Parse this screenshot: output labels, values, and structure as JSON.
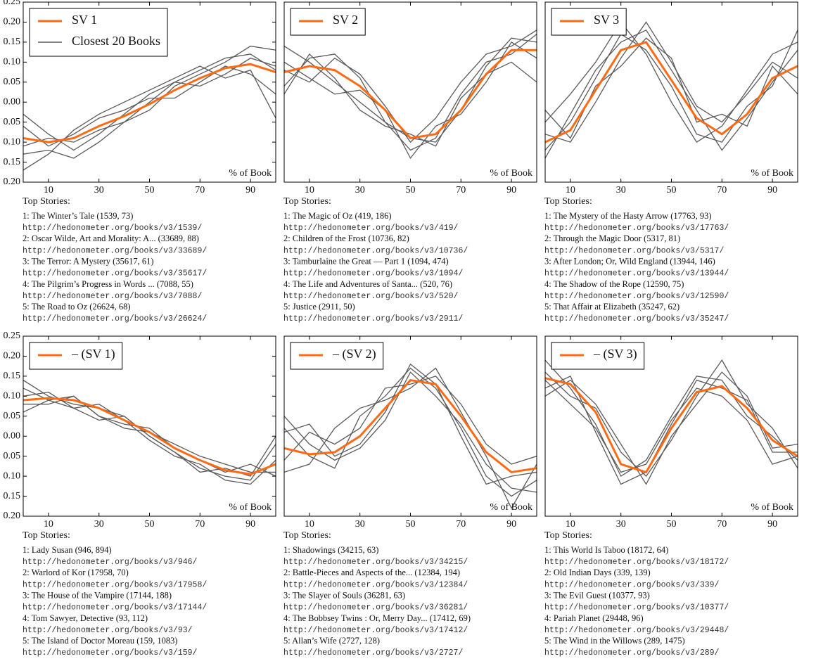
{
  "chart_data": [
    {
      "type": "line",
      "x": [
        0,
        10,
        20,
        30,
        40,
        50,
        60,
        70,
        80,
        90,
        100
      ],
      "xlim": [
        0,
        100
      ],
      "xticks": [
        10,
        30,
        50,
        70,
        90
      ],
      "ylim": [
        -0.2,
        0.25
      ],
      "yticks": [
        {
          "value": -0.2,
          "label": "0.20"
        },
        {
          "value": -0.15,
          "label": "0.15"
        },
        {
          "value": -0.1,
          "label": "0.10"
        },
        {
          "value": -0.05,
          "label": "0.05"
        },
        {
          "value": 0,
          "label": "0.00"
        },
        {
          "value": 0.05,
          "label": "0.05"
        },
        {
          "value": 0.1,
          "label": "0.10"
        },
        {
          "value": 0.15,
          "label": "0.15"
        },
        {
          "value": 0.2,
          "label": "0.20"
        },
        {
          "value": 0.25,
          "label": "0.25"
        }
      ],
      "annotation": "% of Book",
      "legend": "upper left",
      "series": [
        {
          "name": "SV 1",
          "color": "#ff6a13",
          "values": [
            -0.09,
            -0.1,
            -0.09,
            -0.06,
            -0.035,
            -0.005,
            0.03,
            0.06,
            0.085,
            0.095,
            0.075
          ]
        },
        {
          "name": "Closest 20 Books",
          "color": "#5a5a5a",
          "lines": [
            [
              -0.03,
              -0.08,
              -0.12,
              -0.08,
              -0.03,
              0.02,
              0.05,
              0.08,
              0.11,
              0.12,
              0.08
            ],
            [
              -0.13,
              -0.12,
              -0.14,
              -0.1,
              -0.05,
              -0.02,
              0.04,
              0.07,
              0.1,
              0.14,
              0.13
            ],
            [
              -0.06,
              -0.11,
              -0.08,
              -0.04,
              -0.02,
              0.01,
              0.01,
              0.05,
              0.09,
              0.07,
              0.02
            ],
            [
              -0.11,
              -0.09,
              -0.1,
              -0.07,
              -0.05,
              0,
              0.05,
              0.04,
              0.07,
              0.11,
              0.09
            ],
            [
              -0.17,
              -0.13,
              -0.07,
              -0.03,
              0,
              0.03,
              0.06,
              0.09,
              0.06,
              0.08,
              -0.04
            ]
          ]
        }
      ],
      "top_stories": {
        "heading": "Top Stories:",
        "items": [
          {
            "title": "1: The Winter’s Tale (1539, 73)",
            "url": "http://hedonometer.org/books/v3/1539/"
          },
          {
            "title": "2: Oscar Wilde, Art and Morality: A... (33689, 88)",
            "url": "http://hedonometer.org/books/v3/33689/"
          },
          {
            "title": "3: The Terror: A Mystery (35617, 61)",
            "url": "http://hedonometer.org/books/v3/35617/"
          },
          {
            "title": "4: The Pilgrim’s Progress in Words ... (7088, 55)",
            "url": "http://hedonometer.org/books/v3/7088/"
          },
          {
            "title": "5: The Road to Oz (26624, 68)",
            "url": "http://hedonometer.org/books/v3/26624/"
          }
        ]
      }
    },
    {
      "type": "line",
      "x": [
        0,
        10,
        20,
        30,
        40,
        50,
        60,
        70,
        80,
        90,
        100
      ],
      "xlim": [
        0,
        100
      ],
      "xticks": [
        10,
        30,
        50,
        70,
        90
      ],
      "ylim": [
        -0.2,
        0.25
      ],
      "annotation": "% of Book",
      "legend": "upper left",
      "series": [
        {
          "name": "SV 2",
          "color": "#ff6a13",
          "values": [
            0.075,
            0.09,
            0.08,
            0.04,
            -0.02,
            -0.09,
            -0.08,
            -0.02,
            0.07,
            0.13,
            0.13
          ]
        },
        {
          "color": "#5a5a5a",
          "lines": [
            [
              0.14,
              0.1,
              0.05,
              0,
              -0.05,
              -0.09,
              -0.1,
              -0.02,
              0.09,
              0.16,
              0.15
            ],
            [
              0.04,
              0.11,
              0.12,
              0.06,
              -0.05,
              -0.12,
              -0.09,
              0.02,
              0.1,
              0.12,
              0.17
            ],
            [
              0.1,
              0.06,
              0.02,
              0.03,
              -0.02,
              -0.14,
              -0.06,
              -0.03,
              0.05,
              0.15,
              0.11
            ],
            [
              0.02,
              0.12,
              0.06,
              -0.02,
              -0.06,
              -0.08,
              -0.11,
              0.01,
              0.07,
              0.1,
              0.05
            ],
            [
              0.08,
              0.05,
              0.11,
              0.07,
              -0.01,
              -0.1,
              -0.04,
              0.05,
              0.12,
              0.14,
              0.18
            ]
          ]
        }
      ],
      "top_stories": {
        "heading": "Top Stories:",
        "items": [
          {
            "title": "1: The Magic of Oz (419, 186)",
            "url": "http://hedonometer.org/books/v3/419/"
          },
          {
            "title": "2: Children of the Frost (10736, 82)",
            "url": "http://hedonometer.org/books/v3/10736/"
          },
          {
            "title": "3: Tamburlaine the Great — Part 1 (1094, 474)",
            "url": "http://hedonometer.org/books/v3/1094/"
          },
          {
            "title": "4: The Life and Adventures of Santa... (520, 76)",
            "url": "http://hedonometer.org/books/v3/520/"
          },
          {
            "title": "5: Justice (2911, 50)",
            "url": "http://hedonometer.org/books/v3/2911/"
          }
        ]
      }
    },
    {
      "type": "line",
      "x": [
        0,
        10,
        20,
        30,
        40,
        50,
        60,
        70,
        80,
        90,
        100
      ],
      "xlim": [
        0,
        100
      ],
      "xticks": [
        10,
        30,
        50,
        70,
        90
      ],
      "ylim": [
        -0.2,
        0.25
      ],
      "annotation": "% of Book",
      "legend": "upper left",
      "series": [
        {
          "name": "SV 3",
          "color": "#ff6a13",
          "values": [
            -0.1,
            -0.07,
            0.03,
            0.13,
            0.15,
            0.055,
            -0.04,
            -0.08,
            -0.03,
            0.06,
            0.09
          ]
        },
        {
          "color": "#5a5a5a",
          "lines": [
            [
              -0.05,
              0.02,
              0.1,
              0.2,
              0.12,
              0,
              -0.1,
              -0.06,
              0.03,
              0.12,
              0.15
            ],
            [
              -0.14,
              -0.03,
              0.08,
              0.15,
              0.18,
              0.08,
              -0.02,
              -0.12,
              -0.04,
              0.05,
              0.13
            ],
            [
              -0.08,
              -0.1,
              0,
              0.11,
              0.2,
              0.1,
              -0.01,
              -0.05,
              0.02,
              0.1,
              0.06
            ],
            [
              -0.12,
              -0.05,
              0.06,
              0.17,
              0.13,
              0.04,
              -0.08,
              -0.1,
              -0.01,
              0.04,
              0.18
            ],
            [
              -0.02,
              -0.09,
              0.04,
              0.09,
              0.16,
              0.11,
              -0.05,
              -0.03,
              -0.06,
              0.09,
              0.02
            ]
          ]
        }
      ],
      "top_stories": {
        "heading": "Top Stories:",
        "items": [
          {
            "title": "1: The Mystery of the Hasty Arrow (17763, 93)",
            "url": "http://hedonometer.org/books/v3/17763/"
          },
          {
            "title": "2: Through the Magic Door (5317, 81)",
            "url": "http://hedonometer.org/books/v3/5317/"
          },
          {
            "title": "3: After London; Or, Wild England (13944, 146)",
            "url": "http://hedonometer.org/books/v3/13944/"
          },
          {
            "title": "4: The Shadow of the Rope (12590, 75)",
            "url": "http://hedonometer.org/books/v3/12590/"
          },
          {
            "title": "5: That Affair at Elizabeth (35247, 62)",
            "url": "http://hedonometer.org/books/v3/35247/"
          }
        ]
      }
    },
    {
      "type": "line",
      "x": [
        0,
        10,
        20,
        30,
        40,
        50,
        60,
        70,
        80,
        90,
        100
      ],
      "xlim": [
        0,
        100
      ],
      "xticks": [
        10,
        30,
        50,
        70,
        90
      ],
      "ylim": [
        -0.2,
        0.25
      ],
      "yticks": [
        {
          "value": -0.2,
          "label": "0.20"
        },
        {
          "value": -0.15,
          "label": "0.15"
        },
        {
          "value": -0.1,
          "label": "0.10"
        },
        {
          "value": -0.05,
          "label": "0.05"
        },
        {
          "value": 0,
          "label": "0.00"
        },
        {
          "value": 0.05,
          "label": "0.05"
        },
        {
          "value": 0.1,
          "label": "0.10"
        },
        {
          "value": 0.15,
          "label": "0.15"
        },
        {
          "value": 0.2,
          "label": "0.20"
        },
        {
          "value": 0.25,
          "label": "0.25"
        }
      ],
      "annotation": "% of Book",
      "legend": "upper left",
      "series": [
        {
          "name": "– (SV 1)",
          "color": "#ff6a13",
          "values": [
            0.09,
            0.095,
            0.09,
            0.07,
            0.04,
            0.01,
            -0.03,
            -0.06,
            -0.085,
            -0.095,
            -0.07
          ]
        },
        {
          "color": "#5a5a5a",
          "lines": [
            [
              0.14,
              0.1,
              0.08,
              0.07,
              0.05,
              0,
              -0.04,
              -0.08,
              -0.1,
              -0.11,
              -0.02
            ],
            [
              0.06,
              0.09,
              0.1,
              0.05,
              0.02,
              0.01,
              -0.02,
              -0.05,
              -0.07,
              -0.09,
              -0.09
            ],
            [
              0.1,
              0.11,
              0.07,
              0.08,
              0.04,
              -0.01,
              -0.05,
              -0.07,
              -0.11,
              -0.12,
              -0.06
            ],
            [
              0.08,
              0.08,
              0.1,
              0.05,
              0.03,
              0.02,
              -0.03,
              -0.06,
              -0.09,
              -0.07,
              -0.1
            ],
            [
              0.12,
              0.09,
              0.07,
              0.04,
              0.05,
              0,
              -0.04,
              -0.09,
              -0.08,
              -0.1,
              0
            ]
          ]
        }
      ],
      "top_stories": {
        "heading": "Top Stories:",
        "items": [
          {
            "title": "1: Lady Susan (946, 894)",
            "url": "http://hedonometer.org/books/v3/946/"
          },
          {
            "title": "2: Warlord of Kor (17958, 70)",
            "url": "http://hedonometer.org/books/v3/17958/"
          },
          {
            "title": "3: The House of the Vampire (17144, 188)",
            "url": "http://hedonometer.org/books/v3/17144/"
          },
          {
            "title": "4: Tom Sawyer, Detective (93, 112)",
            "url": "http://hedonometer.org/books/v3/93/"
          },
          {
            "title": "5: The Island of Doctor Moreau (159, 1083)",
            "url": "http://hedonometer.org/books/v3/159/"
          }
        ]
      }
    },
    {
      "type": "line",
      "x": [
        0,
        10,
        20,
        30,
        40,
        50,
        60,
        70,
        80,
        90,
        100
      ],
      "xlim": [
        0,
        100
      ],
      "xticks": [
        10,
        30,
        50,
        70,
        90
      ],
      "ylim": [
        -0.2,
        0.25
      ],
      "annotation": "% of Book",
      "legend": "upper left",
      "series": [
        {
          "name": "– (SV 2)",
          "color": "#ff6a13",
          "values": [
            -0.03,
            -0.045,
            -0.04,
            0,
            0.07,
            0.14,
            0.13,
            0.05,
            -0.04,
            -0.09,
            -0.08
          ]
        },
        {
          "color": "#5a5a5a",
          "lines": [
            [
              0.02,
              -0.05,
              -0.08,
              0.05,
              0.1,
              0.17,
              0.12,
              0.02,
              -0.1,
              -0.15,
              -0.11
            ],
            [
              -0.06,
              0.01,
              -0.02,
              0.02,
              0.12,
              0.13,
              0.15,
              0.08,
              -0.02,
              -0.07,
              -0.05
            ],
            [
              0.05,
              -0.02,
              -0.06,
              -0.03,
              0.04,
              0.16,
              0.1,
              0.03,
              -0.07,
              -0.13,
              -0.14
            ],
            [
              -0.09,
              -0.07,
              0.02,
              0.07,
              0.09,
              0.12,
              0.17,
              0.06,
              -0.05,
              -0.18,
              -0.07
            ],
            [
              0.01,
              0.03,
              -0.05,
              -0.02,
              0.06,
              0.18,
              0.13,
              0,
              -0.12,
              -0.1,
              -0.09
            ]
          ]
        }
      ],
      "top_stories": {
        "heading": "Top Stories:",
        "items": [
          {
            "title": "1: Shadowings (34215, 63)",
            "url": "http://hedonometer.org/books/v3/34215/"
          },
          {
            "title": "2: Battle-Pieces and Aspects of the... (12384, 194)",
            "url": "http://hedonometer.org/books/v3/12384/"
          },
          {
            "title": "3: The Slayer of Souls (36281, 63)",
            "url": "http://hedonometer.org/books/v3/36281/"
          },
          {
            "title": "4: The Bobbsey Twins : Or, Merry Day... (17412, 69)",
            "url": "http://hedonometer.org/books/v3/17412/"
          },
          {
            "title": "5: Allan’s Wife (2727, 128)",
            "url": "http://hedonometer.org/books/v3/2727/"
          }
        ]
      }
    },
    {
      "type": "line",
      "x": [
        0,
        10,
        20,
        30,
        40,
        50,
        60,
        70,
        80,
        90,
        100
      ],
      "xlim": [
        0,
        100
      ],
      "xticks": [
        10,
        30,
        50,
        70,
        90
      ],
      "ylim": [
        -0.2,
        0.25
      ],
      "annotation": "% of Book",
      "legend": "upper left",
      "series": [
        {
          "name": "– (SV 3)",
          "color": "#ff6a13",
          "values": [
            0.145,
            0.13,
            0.06,
            -0.07,
            -0.09,
            0.02,
            0.11,
            0.125,
            0.07,
            -0.01,
            -0.05
          ]
        },
        {
          "color": "#5a5a5a",
          "lines": [
            [
              0.19,
              0.12,
              0.03,
              -0.1,
              -0.06,
              0.05,
              0.15,
              0.14,
              0.05,
              0,
              -0.06
            ],
            [
              0.1,
              0.14,
              0.08,
              -0.02,
              -0.12,
              0,
              0.08,
              0.16,
              0.1,
              -0.03,
              -0.02
            ],
            [
              0.14,
              0.08,
              0.02,
              -0.09,
              -0.07,
              0.04,
              0.12,
              0.1,
              0.04,
              -0.07,
              -0.05
            ],
            [
              0.16,
              0.1,
              0.07,
              -0.04,
              -0.1,
              -0.01,
              0.1,
              0.19,
              0.08,
              0.02,
              -0.08
            ],
            [
              0.12,
              0.15,
              0.01,
              -0.12,
              -0.09,
              0.03,
              0.14,
              0.12,
              0.09,
              -0.04,
              -0.04
            ]
          ]
        }
      ],
      "top_stories": {
        "heading": "Top Stories:",
        "items": [
          {
            "title": "1: This World Is Taboo (18172, 64)",
            "url": "http://hedonometer.org/books/v3/18172/"
          },
          {
            "title": "2: Old Indian Days (339, 139)",
            "url": "http://hedonometer.org/books/v3/339/"
          },
          {
            "title": "3: The Evil Guest (10377, 93)",
            "url": "http://hedonometer.org/books/v3/10377/"
          },
          {
            "title": "4: Pariah Planet (29448, 96)",
            "url": "http://hedonometer.org/books/v3/29448/"
          },
          {
            "title": "5: The Wind in the Willows (289, 1475)",
            "url": "http://hedonometer.org/books/v3/289/"
          }
        ]
      }
    }
  ]
}
